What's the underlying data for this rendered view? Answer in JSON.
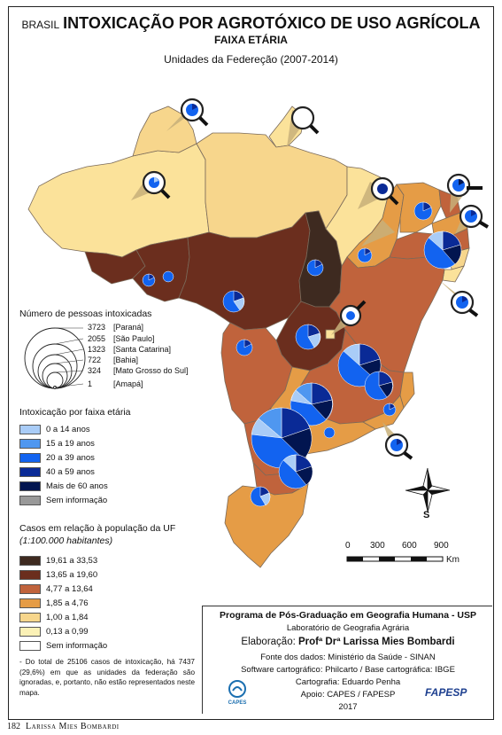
{
  "title": {
    "prefix": "BRASIL",
    "main": "INTOXICAÇÃO POR AGROTÓXICO DE USO AGRÍCOLA",
    "subtitle": "FAIXA ETÁRIA",
    "period": "Unidades da Federeção (2007-2014)"
  },
  "circle_legend": {
    "title": "Número de pessoas intoxicadas",
    "items": [
      {
        "value": "3723",
        "state": "[Paraná]"
      },
      {
        "value": "2055",
        "state": "[São Paulo]"
      },
      {
        "value": "1323",
        "state": "[Santa Catarina]"
      },
      {
        "value": "722",
        "state": "[Bahia]"
      },
      {
        "value": "324",
        "state": "[Mato Grosso do Sul]"
      },
      {
        "value": "1",
        "state": "[Amapá]"
      }
    ]
  },
  "age_legend": {
    "title": "Intoxicação por faixa etária",
    "items": [
      {
        "label": "0 a 14 anos",
        "color": "#a9ccf7"
      },
      {
        "label": "15 a 19 anos",
        "color": "#4f97f0"
      },
      {
        "label": "20 a 39 anos",
        "color": "#1263f0"
      },
      {
        "label": "40 a 59 anos",
        "color": "#0a2a96"
      },
      {
        "label": "Mais de 60 anos",
        "color": "#021550"
      },
      {
        "label": "Sem informação",
        "color": "#999999"
      }
    ]
  },
  "cases_legend": {
    "title": "Casos em relação à população da UF",
    "subtitle": "(1:100.000 habitantes)",
    "items": [
      {
        "label": "19,61 a 33,53",
        "color": "#3e2a20"
      },
      {
        "label": "13,65 a 19,60",
        "color": "#6b2e1e"
      },
      {
        "label": "4,77 a 13,64",
        "color": "#c0633c"
      },
      {
        "label": "1,85 a 4,76",
        "color": "#e59c46"
      },
      {
        "label": "1,00 a 1,84",
        "color": "#f7d68c"
      },
      {
        "label": "0,13 a 0,99",
        "color": "#fbf1b6"
      },
      {
        "label": "Sem informação",
        "color": "#ffffff"
      }
    ]
  },
  "note": "- Do total de 25106 casos de intoxicação, há 7437 (29,6%) em que as unidades da federação são ignoradas, e, portanto, não estão representados neste mapa.",
  "scale": {
    "ticks": [
      "0",
      "300",
      "600",
      "900"
    ],
    "unit": "Km"
  },
  "compass": {
    "label": "S"
  },
  "credits": {
    "program": "Programa de Pós-Graduação em Geografia Humana - USP",
    "lab": "Laboratório de Geografia Agrária",
    "elab_prefix": "Elaboração:",
    "elab_name": "Profª Drª Larissa Mies Bombardi",
    "fonte": "Fonte dos dados: Ministério da Saúde - SINAN",
    "software": "Software cartográfico: Philcarto / Base cartográfica: IBGE",
    "carto": "Cartografia: Eduardo Penha",
    "apoio": "Apoio: CAPES / FAPESP",
    "year": "2017"
  },
  "logos": {
    "capes": "CAPES",
    "fapesp": "FAPESP"
  },
  "footer": {
    "page": "182",
    "author": "Larissa Mies Bombardi"
  }
}
